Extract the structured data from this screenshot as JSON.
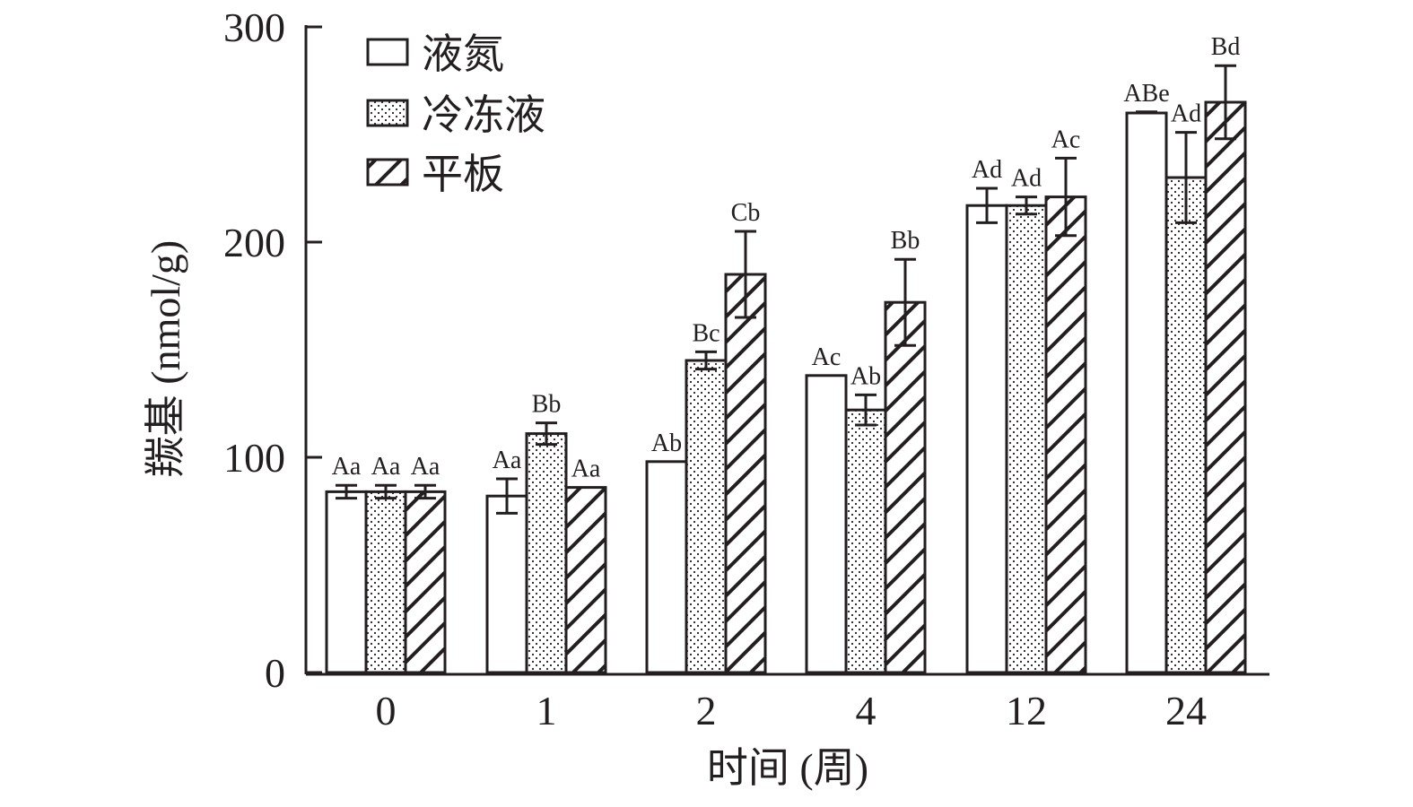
{
  "chart_data": {
    "type": "bar",
    "xlabel": "时间 (周)",
    "ylabel": "羰基 (nmol/g)",
    "ylim": [
      0,
      300
    ],
    "yticks": [
      0,
      100,
      200,
      300
    ],
    "categories": [
      "0",
      "1",
      "2",
      "4",
      "12",
      "24"
    ],
    "legend_position": "top-left",
    "series": [
      {
        "name": "液氮",
        "pattern": "plain",
        "values": [
          84,
          82,
          98,
          138,
          217,
          260
        ],
        "errors": [
          3,
          8,
          0,
          0,
          8,
          0.5
        ],
        "labels": [
          "Aa",
          "Aa",
          "Ab",
          "Ac",
          "Ad",
          "ABe"
        ]
      },
      {
        "name": "冷冻液",
        "pattern": "dots",
        "values": [
          84,
          111,
          145,
          122,
          217,
          230
        ],
        "errors": [
          3,
          5,
          4,
          7,
          4,
          21
        ],
        "labels": [
          "Aa",
          "Bb",
          "Bc",
          "Ab",
          "Ad",
          "Ad"
        ]
      },
      {
        "name": "平板",
        "pattern": "hatch",
        "values": [
          84,
          86,
          185,
          172,
          221,
          265
        ],
        "errors": [
          3,
          0,
          20,
          20,
          18,
          17
        ],
        "labels": [
          "Aa",
          "Aa",
          "Cb",
          "Bb",
          "Ac",
          "Bd"
        ]
      }
    ],
    "colors": {
      "ink": "#231f20",
      "fill": "#ffffff"
    }
  }
}
